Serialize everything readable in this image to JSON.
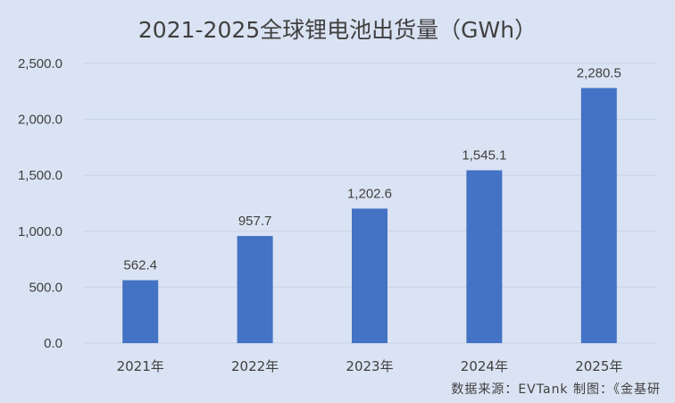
{
  "chart_data": {
    "type": "bar",
    "title": "2021-2025全球锂电池出货量（GWh）",
    "categories": [
      "2021年",
      "2022年",
      "2023年",
      "2024年",
      "2025年"
    ],
    "values": [
      562.4,
      957.7,
      1202.6,
      1545.1,
      2280.5
    ],
    "data_labels": [
      "562.4",
      "957.7",
      "1,202.6",
      "1,545.1",
      "2,280.5"
    ],
    "yticks": [
      "0.0",
      "500.0",
      "1,000.0",
      "1,500.0",
      "2,000.0",
      "2,500.0"
    ],
    "ytick_values": [
      0,
      500,
      1000,
      1500,
      2000,
      2500
    ],
    "ylim": [
      0,
      2500
    ],
    "xlabel": "",
    "ylabel": "",
    "grid": true,
    "bar_color": "#4472c4",
    "grid_color": "#c9d3e6"
  },
  "source_note": "数据来源：EVTank   制图：《金基研"
}
